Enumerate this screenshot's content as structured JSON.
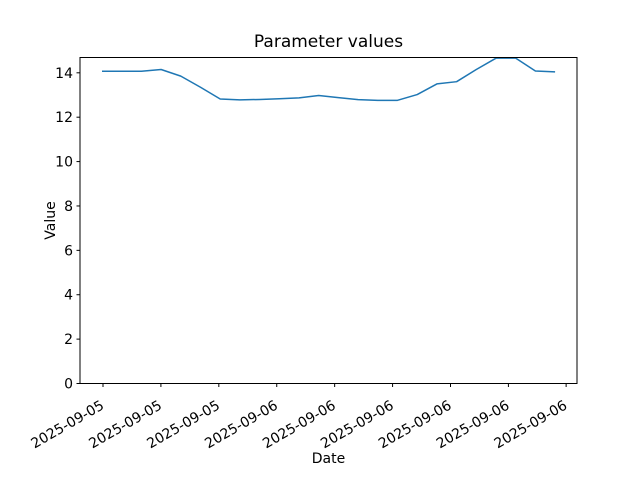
{
  "chart_data": {
    "type": "line",
    "title": "Parameter values",
    "xlabel": "Date",
    "ylabel": "Value",
    "grid": false,
    "legend": "none",
    "background_color": "#ffffff",
    "frame_color": "#000000",
    "ylim": [
      0,
      14.69
    ],
    "xlim_hours": [
      -1.117,
      24.112
    ],
    "y_ticks": [
      0,
      2,
      4,
      6,
      8,
      10,
      12,
      14
    ],
    "x_ticks": [
      {
        "hour": 0.05,
        "label": "2025-09-05"
      },
      {
        "hour": 2.99,
        "label": "2025-09-05"
      },
      {
        "hour": 5.93,
        "label": "2025-09-05"
      },
      {
        "hour": 8.87,
        "label": "2025-09-06"
      },
      {
        "hour": 11.81,
        "label": "2025-09-06"
      },
      {
        "hour": 14.75,
        "label": "2025-09-06"
      },
      {
        "hour": 17.69,
        "label": "2025-09-06"
      },
      {
        "hour": 20.63,
        "label": "2025-09-06"
      },
      {
        "hour": 23.56,
        "label": "2025-09-06"
      }
    ],
    "x_tick_rotation_deg": 30,
    "series": [
      {
        "name": "parameter-values",
        "color": "#1f77b4",
        "line_width": 1.5,
        "x_hours": [
          0,
          1,
          2,
          3,
          4,
          5,
          6,
          7,
          8,
          9,
          10,
          11,
          12,
          13,
          14,
          15,
          16,
          17,
          18,
          19,
          20,
          21,
          22,
          23
        ],
        "values": [
          14.07,
          14.07,
          14.07,
          14.15,
          13.85,
          13.35,
          12.82,
          12.78,
          12.8,
          12.83,
          12.87,
          12.98,
          12.88,
          12.79,
          12.76,
          12.76,
          13.02,
          13.5,
          13.6,
          14.15,
          14.66,
          14.66,
          14.08,
          14.04
        ]
      }
    ]
  }
}
